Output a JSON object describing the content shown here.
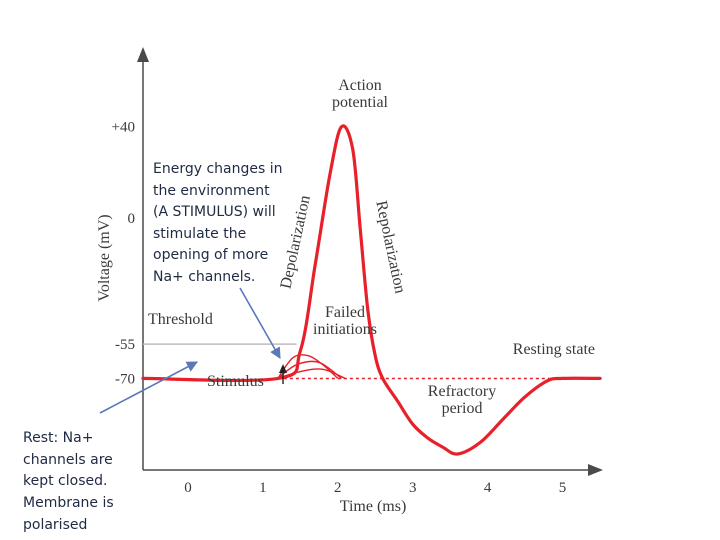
{
  "chart_data": {
    "type": "line",
    "xlabel": "Time (ms)",
    "ylabel": "Voltage (mV)",
    "x_ticks": [
      "0",
      "1",
      "2",
      "3",
      "4",
      "5"
    ],
    "y_ticks": [
      "+40",
      "0",
      "-55",
      "-70"
    ],
    "xlim": [
      -0.6,
      5.5
    ],
    "ylim": [
      -110,
      70
    ],
    "threshold_mV": -55,
    "resting_mV": -70,
    "series": [
      {
        "x": [
          -0.6,
          1.2,
          1.5,
          1.7,
          1.9,
          2.05,
          2.2,
          2.3,
          2.4,
          2.5,
          2.6,
          2.8,
          3.0,
          3.2,
          3.4,
          3.6,
          3.9,
          4.2,
          4.5,
          4.8,
          5.0,
          5.5
        ],
        "y": [
          -70,
          -70,
          -58,
          -20,
          20,
          40,
          30,
          -5,
          -40,
          -60,
          -70,
          -80,
          -90,
          -96,
          -100,
          -103,
          -98,
          -88,
          -78,
          -71,
          -70,
          -70
        ]
      }
    ],
    "failed_initiations": [
      {
        "x": [
          1.2,
          1.4,
          1.6,
          1.8,
          2.0
        ],
        "y": [
          -70,
          -61,
          -60,
          -64,
          -70
        ]
      },
      {
        "x": [
          1.2,
          1.45,
          1.75,
          2.05
        ],
        "y": [
          -70,
          -64,
          -63,
          -70
        ]
      },
      {
        "x": [
          1.2,
          1.5,
          1.8,
          2.1
        ],
        "y": [
          -70,
          -67,
          -66,
          -70
        ]
      }
    ],
    "annotations": {
      "action_potential": "Action\npotential",
      "depolarization": "Depolarization",
      "repolarization": "Repolarization",
      "threshold": "Threshold",
      "failed_initiations": "Failed\ninitiations",
      "resting_state": "Resting state",
      "stimulus": "Stimulus",
      "refractory_period": "Refractory\nperiod"
    },
    "colors": {
      "curve": "#e8202a",
      "threshold_line": "#bdbdbd",
      "resting_dashed": "#e8202a",
      "axis": "#4a4a4a",
      "arrows": "#5b78b8"
    }
  },
  "notes": {
    "stimulus_note": "Energy changes in\nthe environment\n(A STIMULUS) will\nstimulate the\nopening of more\nNa+ channels.",
    "rest_note": "Rest: Na+\nchannels are\nkept closed.",
    "membrane_note": "Membrane is\npolarised"
  }
}
